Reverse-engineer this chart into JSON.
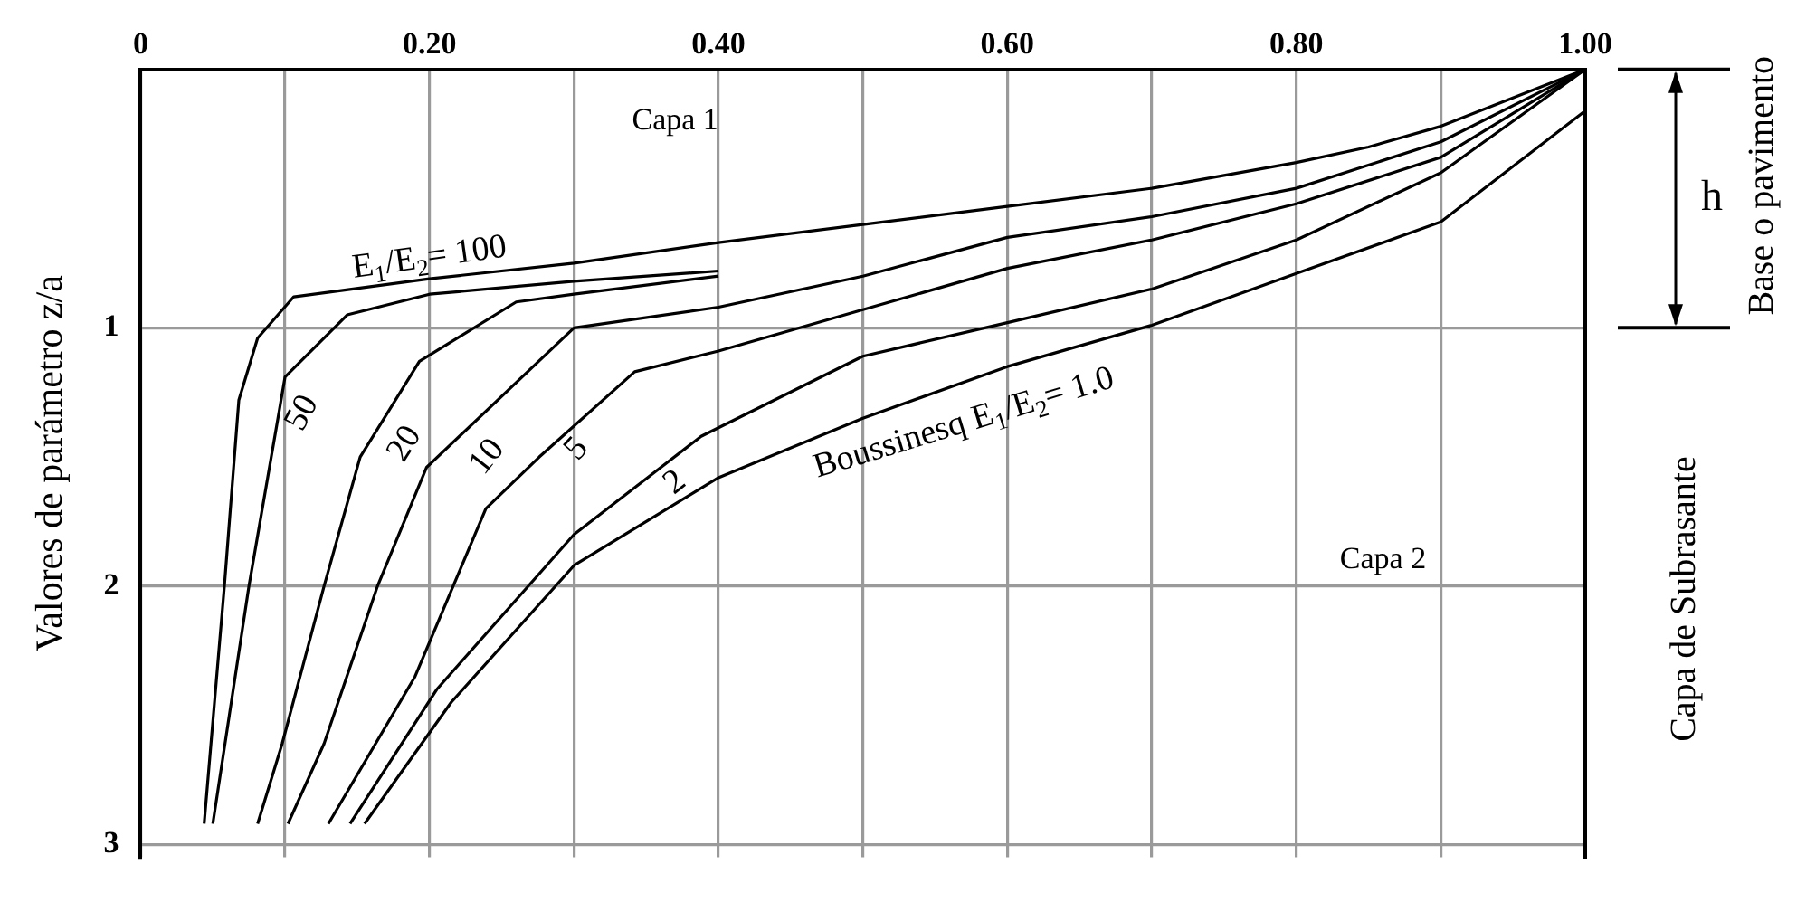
{
  "chart_data": {
    "type": "line",
    "ylabel": "Valores de parámetro z/a",
    "xlim": [
      0,
      1
    ],
    "xticks": [
      0,
      {
        "value": 0.1,
        "label": null
      },
      {
        "value": 0.2,
        "label": "0.20"
      },
      {
        "value": 0.3,
        "label": null
      },
      {
        "value": 0.4,
        "label": "0.40"
      },
      {
        "value": 0.5,
        "label": null
      },
      {
        "value": 0.6,
        "label": "0.60"
      },
      {
        "value": 0.7,
        "label": null
      },
      {
        "value": 0.8,
        "label": "0.80"
      },
      {
        "value": 0.9,
        "label": null
      },
      {
        "value": 1,
        "label": "1.00"
      }
    ],
    "ylim": [
      3.05,
      0
    ],
    "yticks": [
      {
        "value": 0,
        "label": null
      },
      1,
      2,
      3
    ],
    "grid": true,
    "legend": false,
    "marker": "none",
    "line_style": "solid",
    "annotations": [
      "Capa 1",
      "Capa 2",
      "h",
      "Base o pavimento",
      "Capa de Subrasante"
    ],
    "series": [
      {
        "name": "E$_{1}$/E$_{2}$= 100",
        "color": "#000000",
        "x": [
          0.044,
          0.058,
          0.068,
          0.081,
          0.106,
          0.2,
          0.3,
          0.4,
          0.5,
          0.6,
          0.7,
          0.8,
          0.85,
          0.9,
          1.0
        ],
        "values": [
          2.92,
          2.0,
          1.28,
          1.04,
          0.88,
          0.81,
          0.75,
          0.67,
          0.6,
          0.53,
          0.46,
          0.36,
          0.3,
          0.22,
          0
        ]
      },
      {
        "name": "50",
        "color": "#000000",
        "x": [
          0.05,
          0.075,
          0.096,
          0.1,
          0.143,
          0.2,
          0.3,
          0.4
        ],
        "values": [
          2.92,
          2.0,
          1.32,
          1.19,
          0.95,
          0.87,
          0.82,
          0.78
        ]
      },
      {
        "name": "20",
        "color": "#000000",
        "x": [
          0.081,
          0.098,
          0.127,
          0.152,
          0.193,
          0.26,
          0.3,
          0.4
        ],
        "values": [
          2.92,
          2.61,
          2.0,
          1.5,
          1.13,
          0.9,
          0.87,
          0.8
        ]
      },
      {
        "name": "10",
        "color": "#000000",
        "x": [
          0.102,
          0.127,
          0.164,
          0.198,
          0.3,
          0.4,
          0.5,
          0.6,
          0.7,
          0.8,
          0.9,
          1.0
        ],
        "values": [
          2.92,
          2.61,
          2.0,
          1.54,
          1.0,
          0.92,
          0.8,
          0.65,
          0.57,
          0.46,
          0.28,
          0
        ]
      },
      {
        "name": "5",
        "color": "#000000",
        "x": [
          0.13,
          0.19,
          0.239,
          0.276,
          0.342,
          0.4,
          0.5,
          0.6,
          0.7,
          0.8,
          0.9,
          1.0
        ],
        "values": [
          2.92,
          2.35,
          1.7,
          1.5,
          1.17,
          1.09,
          0.93,
          0.77,
          0.66,
          0.52,
          0.34,
          0
        ]
      },
      {
        "name": "2",
        "color": "#000000",
        "x": [
          0.145,
          0.205,
          0.3,
          0.388,
          0.5,
          0.6,
          0.7,
          0.8,
          0.9,
          1.0
        ],
        "values": [
          2.92,
          2.4,
          1.8,
          1.42,
          1.11,
          0.98,
          0.85,
          0.66,
          0.4,
          0
        ]
      },
      {
        "name": "Boussinesq E$_{1}$/E$_{2}$= 1.0",
        "color": "#000000",
        "x": [
          0.155,
          0.215,
          0.3,
          0.4,
          0.5,
          0.6,
          0.7,
          0.8,
          0.9,
          1.0
        ],
        "values": [
          2.92,
          2.45,
          1.92,
          1.58,
          1.35,
          1.15,
          0.99,
          0.79,
          0.59,
          0.16
        ]
      }
    ]
  }
}
